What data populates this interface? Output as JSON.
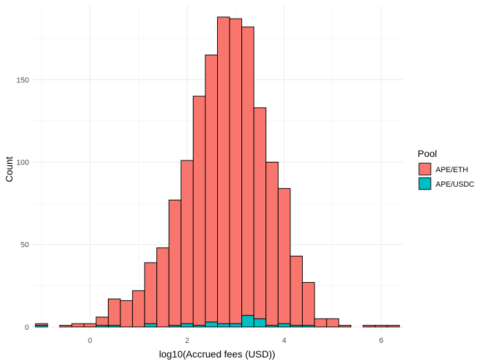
{
  "chart_data": {
    "type": "bar",
    "subtype": "stacked-histogram",
    "xlabel": "log10(Accrued fees (USD))",
    "ylabel": "Count",
    "xlim": [
      -1.2,
      6.45
    ],
    "ylim": [
      -3,
      195
    ],
    "x_ticks": [
      0,
      2,
      4,
      6
    ],
    "y_ticks": [
      0,
      50,
      100,
      150
    ],
    "grid": true,
    "bin_width": 0.25,
    "bin_centers": [
      -1.0,
      -0.75,
      -0.5,
      -0.25,
      0.0,
      0.25,
      0.5,
      0.75,
      1.0,
      1.25,
      1.5,
      1.75,
      2.0,
      2.25,
      2.5,
      2.75,
      3.0,
      3.25,
      3.5,
      3.75,
      4.0,
      4.25,
      4.5,
      4.75,
      5.0,
      5.25,
      5.5,
      5.75,
      6.0,
      6.25
    ],
    "series": [
      {
        "name": "APE/USDC",
        "color": "#00BFC4",
        "values": [
          1,
          0,
          0,
          0,
          0,
          1,
          1,
          0,
          0,
          2,
          0,
          1,
          2,
          1,
          3,
          2,
          2,
          7,
          5,
          1,
          2,
          1,
          1,
          0,
          0,
          0,
          0,
          0,
          0,
          0
        ]
      },
      {
        "name": "APE/ETH",
        "color": "#F8766D",
        "values": [
          1,
          0,
          1,
          2,
          2,
          5,
          16,
          16,
          22,
          37,
          48,
          76,
          99,
          139,
          162,
          186,
          185,
          175,
          128,
          99,
          82,
          42,
          26,
          5,
          5,
          1,
          0,
          1,
          1,
          1
        ]
      }
    ],
    "legend": {
      "title": "Pool",
      "position": "right",
      "entries": [
        "APE/ETH",
        "APE/USDC"
      ]
    }
  }
}
